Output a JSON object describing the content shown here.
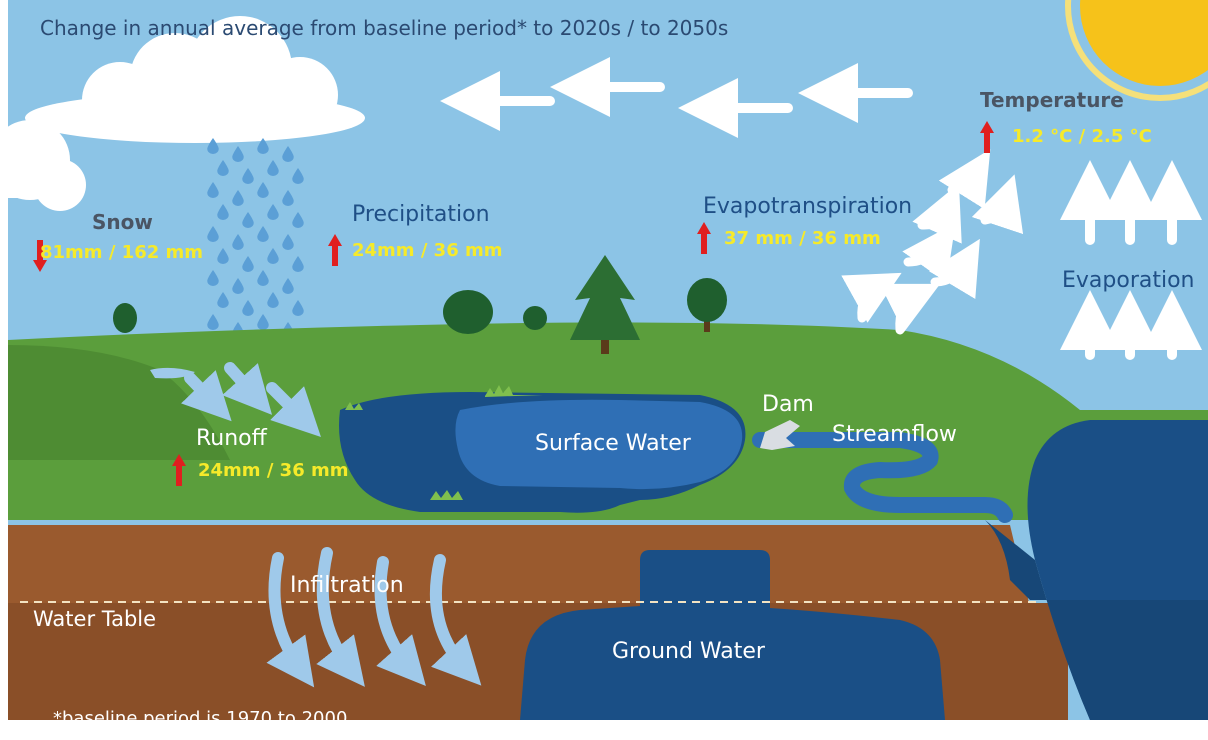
{
  "header": {
    "subtitle": "Change in annual average from baseline period* to 2020s / to 2050s"
  },
  "labels": {
    "snow": "Snow",
    "precipitation": "Precipitation",
    "evapotranspiration": "Evapotranspiration",
    "temperature": "Temperature",
    "evaporation": "Evaporation",
    "runoff": "Runoff",
    "surface_water": "Surface Water",
    "dam": "Dam",
    "streamflow": "Streamflow",
    "infiltration": "Infiltration",
    "water_table": "Water Table",
    "ground_water": "Ground Water"
  },
  "values": {
    "snow": {
      "text": "81mm / 162 mm",
      "direction": "down"
    },
    "precipitation": {
      "text": "24mm / 36 mm",
      "direction": "up"
    },
    "evapotranspiration": {
      "text": "37 mm / 36 mm",
      "direction": "up"
    },
    "temperature": {
      "text": "1.2 °C / 2.5 °C",
      "direction": "up"
    },
    "runoff": {
      "text": "24mm / 36 mm",
      "direction": "up"
    }
  },
  "footnote": "*baseline period is 1970 to 2000",
  "colors": {
    "sky": "#8cc4e6",
    "land": "#5b9e3c",
    "soil": "#9a5a2e",
    "water_dark": "#1a4f86",
    "water_light": "#2f6fb5",
    "value_text": "#f6ea2a",
    "trend_arrow": "#e01f1f",
    "sun": "#f6c21a"
  }
}
